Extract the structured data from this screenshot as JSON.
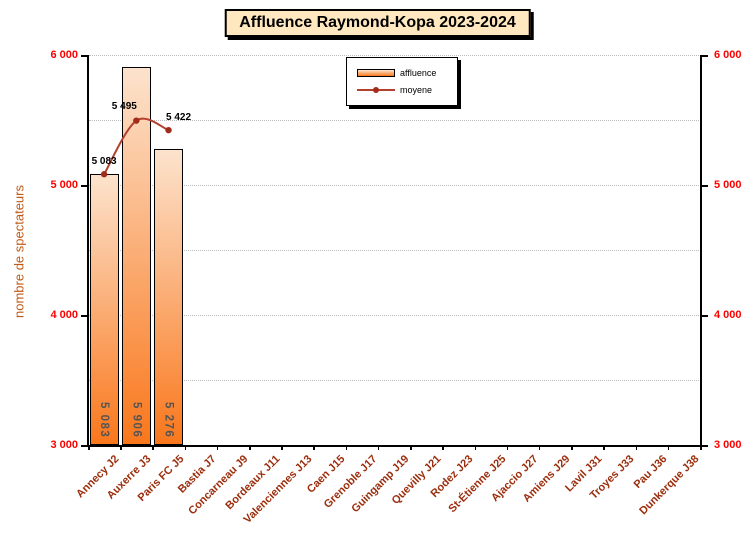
{
  "title": "Affluence Raymond-Kopa 2023-2024",
  "y_axis": {
    "title": "nombre de spectateurs",
    "ticks": [
      {
        "value": 6000,
        "label": "6 000"
      },
      {
        "value": 5000,
        "label": "5 000"
      },
      {
        "value": 4000,
        "label": "4 000"
      },
      {
        "value": 3000,
        "label": "3 000"
      }
    ]
  },
  "legend": {
    "items": [
      {
        "label": "affluence",
        "type": "bar"
      },
      {
        "label": "moyene",
        "type": "line"
      }
    ]
  },
  "chart_data": {
    "type": "bar",
    "title": "Affluence Raymond-Kopa 2023-2024",
    "ylabel": "nombre de spectateurs",
    "xlabel": "",
    "ylim": [
      3000,
      6000
    ],
    "grid": "dotted horizontal every 500",
    "legend_position": "top-center-inside",
    "categories": [
      "Annecy J2",
      "Auxerre J3",
      "Paris FC J5",
      "Bastia J7",
      "Concarneau J9",
      "Bordeaux J11",
      "Valenciennes J13",
      "Caen J15",
      "Grenoble J17",
      "Guingamp J19",
      "Quevilly J21",
      "Rodez J23",
      "St-Étienne J25",
      "Ajaccio J27",
      "Amiens J29",
      "Lavil J31",
      "Troyes J33",
      "Pau J36",
      "Dunkerque J38"
    ],
    "series": [
      {
        "name": "affluence",
        "type": "bar",
        "values": [
          5083,
          5906,
          5276,
          null,
          null,
          null,
          null,
          null,
          null,
          null,
          null,
          null,
          null,
          null,
          null,
          null,
          null,
          null,
          null
        ],
        "value_labels": [
          "5 083",
          "5 906",
          "5 276"
        ]
      },
      {
        "name": "moyene",
        "type": "line",
        "values": [
          5083,
          5495,
          5422,
          null,
          null,
          null,
          null,
          null,
          null,
          null,
          null,
          null,
          null,
          null,
          null,
          null,
          null,
          null,
          null
        ],
        "value_labels": [
          "5 083",
          "5 495",
          "5 422"
        ]
      }
    ]
  },
  "colors": {
    "title_bg": "#FFE7C0",
    "bar_top": "#FCE3CD",
    "bar_bottom": "#F9771C",
    "bar_border": "#000000",
    "bar_label": "#545454",
    "line": "#B2402E",
    "marker": "#A22C1A",
    "x_label": "#9C2E0D",
    "y_tick": "#FF0000",
    "y_title": "#C05A15",
    "grid": "#BBBBBB",
    "axis": "#000000"
  }
}
